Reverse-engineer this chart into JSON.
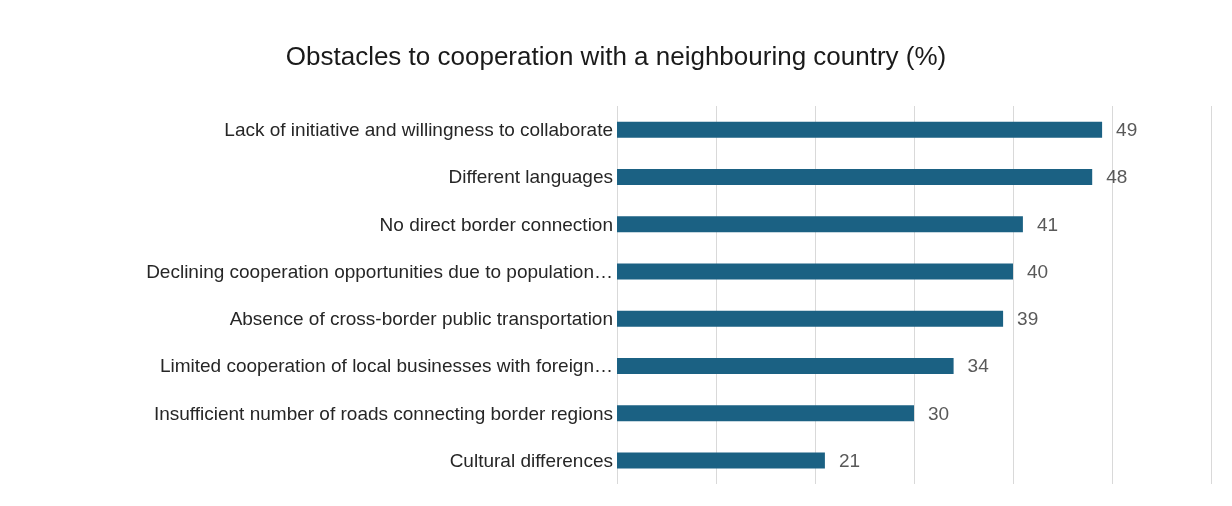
{
  "chart_data": {
    "type": "bar",
    "orientation": "horizontal",
    "title": "Obstacles to cooperation with a neighbouring country (%)",
    "categories": [
      "Lack of initiative and willingness to collaborate",
      "Different languages",
      "No direct border connection",
      "Declining cooperation opportunities due to population…",
      "Absence of cross-border public transportation",
      "Limited cooperation of local businesses with foreign…",
      "Insufficient number of roads connecting border regions",
      "Cultural differences"
    ],
    "values": [
      49,
      48,
      41,
      40,
      39,
      34,
      30,
      21
    ],
    "color": "#1b6183",
    "xlim": [
      0,
      60
    ],
    "xticks": [
      {
        "value": 0,
        "label": null
      },
      {
        "value": 10,
        "label": null
      },
      {
        "value": 20,
        "label": null
      },
      {
        "value": 30,
        "label": null
      },
      {
        "value": 40,
        "label": null
      },
      {
        "value": 50,
        "label": null
      },
      {
        "value": 60,
        "label": null
      }
    ],
    "grid": "x",
    "tick_labels": "y",
    "data_labels": true
  }
}
